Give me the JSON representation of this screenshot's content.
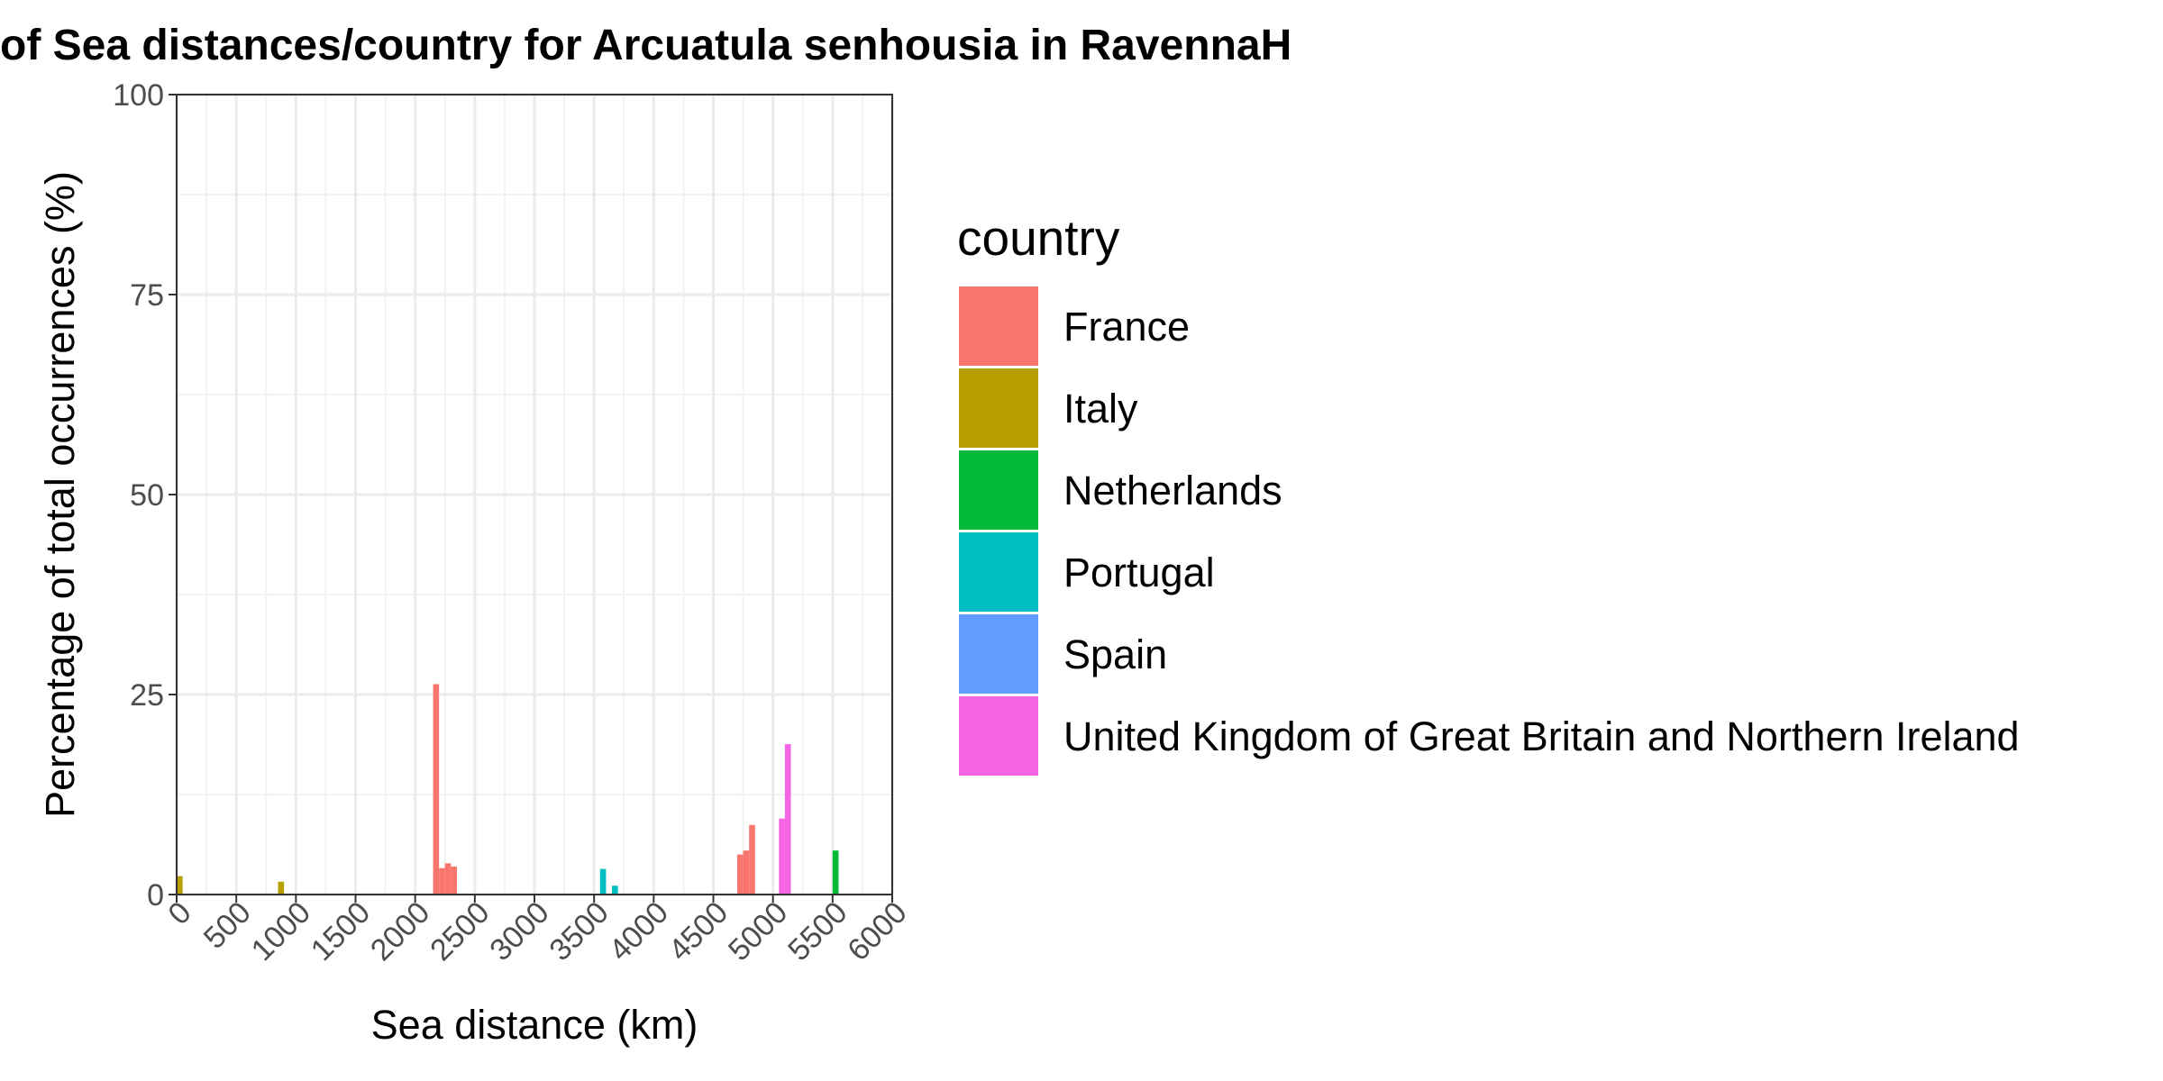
{
  "chart_data": {
    "type": "bar",
    "title": "of Sea distances/country for Arcuatula senhousia in RavennaH",
    "xlabel": "Sea distance (km)",
    "ylabel": "Percentage of total occurrences (%)",
    "xlim": [
      0,
      6000
    ],
    "ylim": [
      0,
      100
    ],
    "x_ticks": [
      "0",
      "500",
      "1000",
      "1500",
      "2000",
      "2500",
      "3000",
      "3500",
      "4000",
      "4500",
      "5000",
      "5500",
      "6000"
    ],
    "y_ticks": [
      "0",
      "25",
      "50",
      "75",
      "100"
    ],
    "bin_width_km": 50,
    "grid": true,
    "legend": {
      "title": "country",
      "position": "right",
      "entries": [
        {
          "name": "France",
          "color": "#F8766D"
        },
        {
          "name": "Italy",
          "color": "#B79F00"
        },
        {
          "name": "Netherlands",
          "color": "#00BA38"
        },
        {
          "name": "Portugal",
          "color": "#00BFC4"
        },
        {
          "name": "Spain",
          "color": "#619CFF"
        },
        {
          "name": "United Kingdom of Great Britain and Northern Ireland",
          "color": "#F564E3"
        }
      ]
    },
    "series": [
      {
        "name": "Italy",
        "color": "#B79F00",
        "points": [
          {
            "x": 0,
            "y": 2.3
          },
          {
            "x": 850,
            "y": 1.6
          }
        ]
      },
      {
        "name": "France",
        "color": "#F8766D",
        "points": [
          {
            "x": 2150,
            "y": 26.3
          },
          {
            "x": 2200,
            "y": 3.3
          },
          {
            "x": 2250,
            "y": 3.9
          },
          {
            "x": 2300,
            "y": 3.5
          },
          {
            "x": 4700,
            "y": 5.0
          },
          {
            "x": 4750,
            "y": 5.5
          },
          {
            "x": 4800,
            "y": 8.7
          }
        ]
      },
      {
        "name": "Portugal",
        "color": "#00BFC4",
        "points": [
          {
            "x": 3550,
            "y": 3.2
          },
          {
            "x": 3650,
            "y": 1.1
          }
        ]
      },
      {
        "name": "United Kingdom of Great Britain and Northern Ireland",
        "color": "#F564E3",
        "points": [
          {
            "x": 5050,
            "y": 9.5
          },
          {
            "x": 5100,
            "y": 18.8
          }
        ]
      },
      {
        "name": "Netherlands",
        "color": "#00BA38",
        "points": [
          {
            "x": 5500,
            "y": 5.5
          }
        ]
      }
    ]
  }
}
